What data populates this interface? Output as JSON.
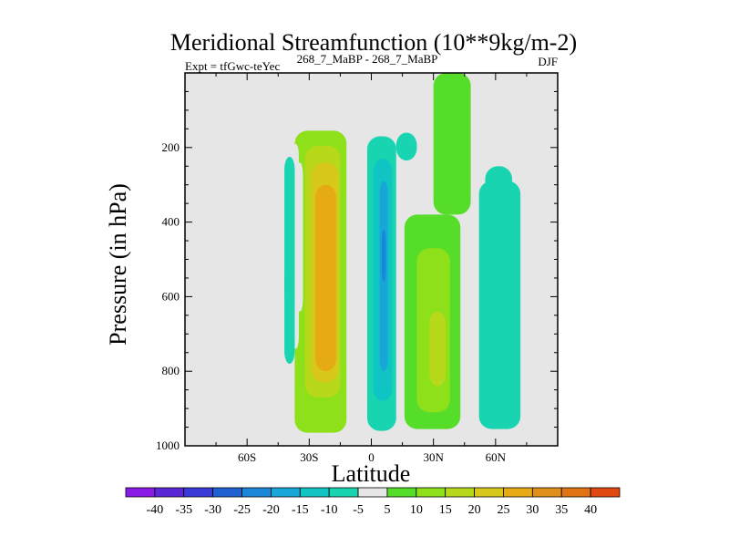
{
  "chart_data": {
    "type": "contour",
    "title": "Meridional Streamfunction (10**9kg/m-2)",
    "left_label": "Expt = tfGwc-teYec",
    "center_label": "268_7_MaBP - 268_7_MaBP",
    "right_label": "DJF",
    "xlabel": "Latitude",
    "ylabel": "Pressure (in hPa)",
    "xlim": [
      -90,
      90
    ],
    "ylim": [
      1000,
      0
    ],
    "x_ticks": [
      {
        "value": -60,
        "label": "60S"
      },
      {
        "value": -30,
        "label": "30S"
      },
      {
        "value": 0,
        "label": "0"
      },
      {
        "value": 30,
        "label": "30N"
      },
      {
        "value": 60,
        "label": "60N"
      }
    ],
    "y_ticks": [
      {
        "value": 200,
        "label": "200"
      },
      {
        "value": 400,
        "label": "400"
      },
      {
        "value": 600,
        "label": "600"
      },
      {
        "value": 800,
        "label": "800"
      },
      {
        "value": 1000,
        "label": "1000"
      }
    ],
    "background_color": "#e6e6e6",
    "colorbar": {
      "levels": [
        -40,
        -35,
        -30,
        -25,
        -20,
        -15,
        -10,
        -5,
        5,
        10,
        15,
        20,
        25,
        30,
        35,
        40
      ],
      "labels": [
        "-40",
        "-35",
        "-30",
        "-25",
        "-20",
        "-15",
        "-10",
        "-5",
        "5",
        "10",
        "15",
        "20",
        "25",
        "30",
        "35",
        "40"
      ],
      "colors": [
        "#8a1ae6",
        "#5a28d6",
        "#3a3ad8",
        "#2060d0",
        "#1a86d8",
        "#18a6d8",
        "#10c4c4",
        "#18d4b0",
        "#e6e6e6",
        "#55dd2a",
        "#8ee01a",
        "#b8d81a",
        "#d8c81a",
        "#e6aa14",
        "#e0901a",
        "#e07414",
        "#e04a10"
      ]
    },
    "cells": [
      {
        "lat": [
          -37,
          -12
        ],
        "p": [
          155,
          965
        ],
        "value": 12
      },
      {
        "lat": [
          -32,
          -15
        ],
        "p": [
          195,
          870
        ],
        "value": 17
      },
      {
        "lat": [
          -29,
          -16
        ],
        "p": [
          240,
          830
        ],
        "value": 22
      },
      {
        "lat": [
          -27,
          -17
        ],
        "p": [
          300,
          800
        ],
        "value": 28
      },
      {
        "lat": [
          -38,
          -35
        ],
        "p": [
          190,
          740
        ],
        "value": -5
      },
      {
        "lat": [
          -36,
          -33
        ],
        "p": [
          240,
          640
        ],
        "value": -5
      },
      {
        "lat": [
          -42,
          -37
        ],
        "p": [
          225,
          780
        ],
        "value": -7
      },
      {
        "lat": [
          -42,
          -38
        ],
        "p": [
          520,
          620
        ],
        "value": -7
      },
      {
        "lat": [
          -2,
          12
        ],
        "p": [
          170,
          960
        ],
        "value": -8
      },
      {
        "lat": [
          1,
          10
        ],
        "p": [
          230,
          880
        ],
        "value": -14
      },
      {
        "lat": [
          4,
          8
        ],
        "p": [
          290,
          800
        ],
        "value": -20
      },
      {
        "lat": [
          5,
          7
        ],
        "p": [
          420,
          560
        ],
        "value": -24
      },
      {
        "lat": [
          12,
          22
        ],
        "p": [
          160,
          235
        ],
        "value": -7
      },
      {
        "lat": [
          12,
          20
        ],
        "p": [
          180,
          210
        ],
        "value": -10
      },
      {
        "lat": [
          16,
          43
        ],
        "p": [
          380,
          955
        ],
        "value": 8
      },
      {
        "lat": [
          22,
          38
        ],
        "p": [
          470,
          910
        ],
        "value": 12
      },
      {
        "lat": [
          28,
          36
        ],
        "p": [
          640,
          840
        ],
        "value": 17
      },
      {
        "lat": [
          30,
          48
        ],
        "p": [
          0,
          380
        ],
        "value": 7
      },
      {
        "lat": [
          52,
          72
        ],
        "p": [
          290,
          955
        ],
        "value": -7
      },
      {
        "lat": [
          55,
          68
        ],
        "p": [
          250,
          930
        ],
        "value": -7
      }
    ]
  }
}
